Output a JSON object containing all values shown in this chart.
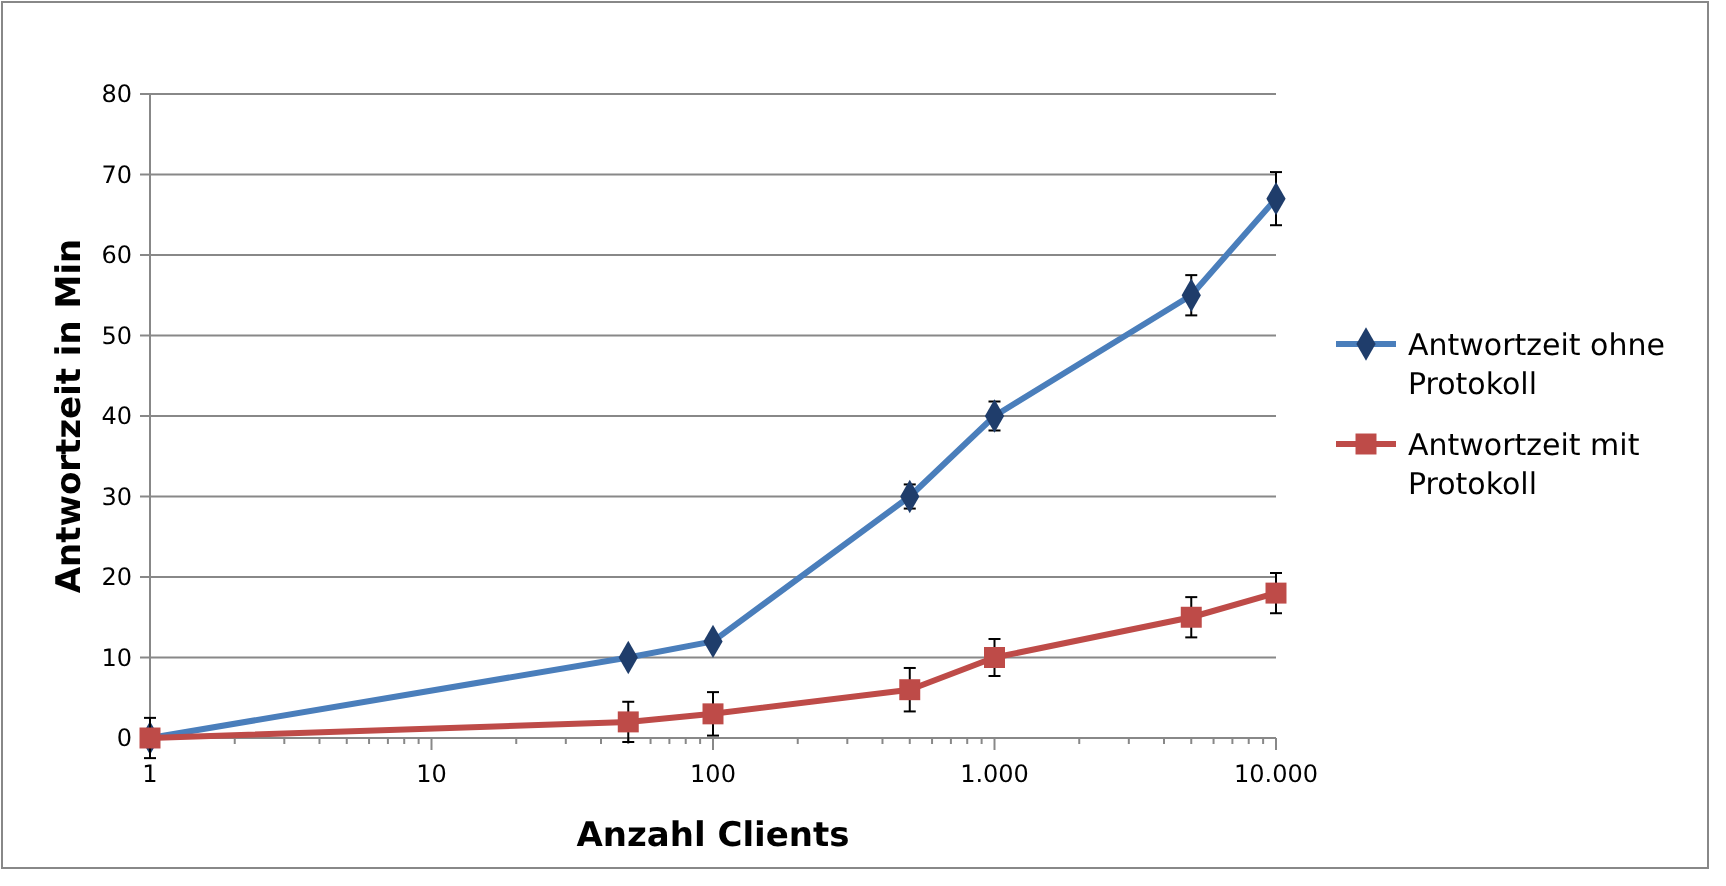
{
  "chart_data": {
    "type": "line",
    "xlabel": "Anzahl Clients",
    "ylabel": "Antwortzeit in Min",
    "log": "x",
    "xlim": [
      1,
      10000
    ],
    "xticks": [
      1,
      10,
      100,
      {
        "value": 1000,
        "label": "1.000"
      },
      {
        "value": 10000,
        "label": "10.000"
      }
    ],
    "ylim": [
      0,
      80
    ],
    "yticks": [
      0,
      10,
      20,
      30,
      40,
      50,
      60,
      70,
      80
    ],
    "grid": "y",
    "legend": "right",
    "x": [
      1,
      50,
      100,
      500,
      1000,
      5000,
      10000
    ],
    "series": [
      {
        "name": "Antwortzeit ohne Protokoll",
        "color": "#4a7ebb",
        "marker": "diamond",
        "values": [
          0,
          10,
          12,
          30,
          40,
          55,
          67
        ],
        "errors": [
          null,
          null,
          null,
          1.5,
          1.8,
          2.5,
          3.3
        ]
      },
      {
        "name": "Antwortzeit mit Protokoll",
        "color": "#be4b48",
        "marker": "square",
        "values": [
          0,
          2,
          3,
          6,
          10,
          15,
          18
        ],
        "errors": [
          2.5,
          2.5,
          2.7,
          2.7,
          2.3,
          2.5,
          2.5
        ]
      }
    ]
  }
}
